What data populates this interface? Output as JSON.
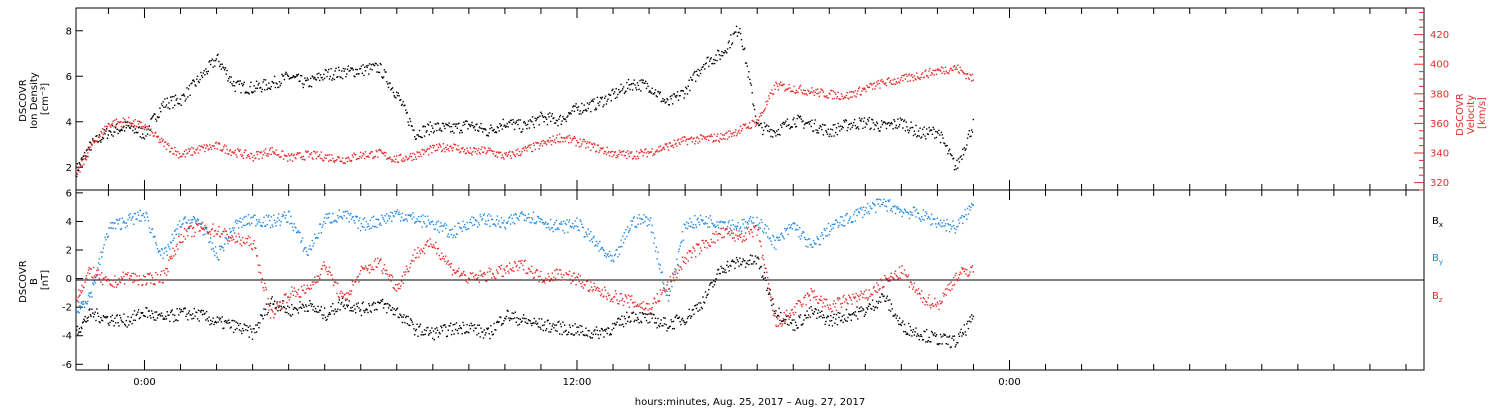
{
  "chart_data": [
    {
      "type": "scatter",
      "panel": "density-velocity",
      "ylabel_left": [
        "DSCOVR",
        "Ion Density",
        "[cm⁻³]"
      ],
      "ylabel_right": [
        "DSCOVR",
        "Velocity",
        "[km/s]"
      ],
      "ylim_left": [
        1,
        9
      ],
      "ylim_right": [
        315,
        438
      ],
      "yticks_left": [
        2,
        4,
        6,
        8
      ],
      "yticks_right": [
        320,
        340,
        360,
        380,
        400,
        420
      ],
      "xlim_hours": [
        -1.9,
        35.5
      ],
      "grid": false,
      "series": [
        {
          "axis": "left",
          "color": "#000000",
          "x": [
            -1.9,
            -1.5,
            -1.0,
            -0.5,
            0.0,
            0.5,
            1.0,
            1.5,
            2.0,
            2.5,
            3.0,
            3.5,
            4.0,
            4.5,
            5.0,
            5.5,
            6.0,
            6.5,
            7.0,
            7.5,
            8.0,
            8.5,
            9.0,
            9.5,
            10.0,
            10.5,
            11.0,
            11.5,
            12.0,
            12.5,
            13.0,
            13.5,
            14.0,
            14.5,
            15.0,
            15.5,
            16.0,
            16.5,
            17.0,
            17.5,
            18.0,
            18.5,
            19.0,
            19.5,
            20.0,
            20.5,
            21.0,
            21.5,
            22.0,
            22.5,
            23.0
          ],
          "y": [
            1.9,
            3.0,
            3.6,
            3.8,
            3.5,
            4.8,
            5.0,
            5.9,
            6.8,
            5.6,
            5.5,
            5.7,
            6.0,
            5.7,
            6.1,
            6.2,
            6.3,
            6.4,
            5.2,
            3.5,
            3.8,
            3.7,
            3.9,
            3.6,
            4.0,
            3.8,
            4.2,
            4.1,
            4.6,
            4.8,
            5.2,
            5.7,
            5.6,
            4.8,
            5.4,
            6.6,
            7.0,
            8.2,
            3.8,
            3.6,
            4.1,
            3.9,
            3.6,
            3.9,
            4.0,
            3.8,
            4.0,
            3.5,
            3.6,
            2.0,
            4.0
          ]
        },
        {
          "axis": "right",
          "color": "#e62a2a",
          "x": [
            -1.9,
            -1.5,
            -1.0,
            -0.5,
            0.0,
            0.5,
            1.0,
            1.5,
            2.0,
            2.5,
            3.0,
            3.5,
            4.0,
            4.5,
            5.0,
            5.5,
            6.0,
            6.5,
            7.0,
            7.5,
            8.0,
            8.5,
            9.0,
            9.5,
            10.0,
            10.5,
            11.0,
            11.5,
            12.0,
            12.5,
            13.0,
            13.5,
            14.0,
            14.5,
            15.0,
            15.5,
            16.0,
            16.5,
            17.0,
            17.5,
            18.0,
            18.5,
            19.0,
            19.5,
            20.0,
            20.5,
            21.0,
            21.5,
            22.0,
            22.5,
            23.0
          ],
          "y": [
            325,
            345,
            360,
            362,
            358,
            347,
            339,
            343,
            345,
            341,
            338,
            342,
            337,
            339,
            338,
            336,
            339,
            340,
            336,
            339,
            343,
            345,
            341,
            342,
            338,
            342,
            346,
            351,
            348,
            344,
            340,
            339,
            341,
            345,
            349,
            350,
            351,
            356,
            362,
            386,
            384,
            382,
            380,
            379,
            384,
            388,
            390,
            393,
            396,
            398,
            390
          ]
        }
      ]
    },
    {
      "type": "scatter",
      "panel": "magnetic-field",
      "ylabel": [
        "DSCOVR",
        "B",
        "[nT]"
      ],
      "ylim": [
        -6.4,
        6.2
      ],
      "yticks": [
        -6,
        -4,
        -2,
        0,
        2,
        4,
        6
      ],
      "zero_line": true,
      "xlim_hours": [
        -1.9,
        35.5
      ],
      "xticks": [
        "0:00",
        "12:00",
        "0:00"
      ],
      "xtick_hours": [
        0,
        12,
        24
      ],
      "xlabel": "hours:minutes, Aug. 25, 2017 – Aug. 27, 2017",
      "grid": false,
      "series": [
        {
          "name": "Bx",
          "color": "#000000",
          "x": [
            -1.9,
            -1.5,
            -1.0,
            -0.5,
            0.0,
            0.5,
            1.0,
            1.5,
            2.0,
            2.5,
            3.0,
            3.5,
            4.0,
            4.5,
            5.0,
            5.5,
            6.0,
            6.5,
            7.0,
            7.5,
            8.0,
            8.5,
            9.0,
            9.5,
            10.0,
            10.5,
            11.0,
            11.5,
            12.0,
            12.5,
            13.0,
            13.5,
            14.0,
            14.5,
            15.0,
            15.5,
            16.0,
            16.5,
            17.0,
            17.5,
            18.0,
            18.5,
            19.0,
            19.5,
            20.0,
            20.5,
            21.0,
            21.5,
            22.0,
            22.5,
            23.0
          ],
          "y": [
            -3.6,
            -2.4,
            -2.8,
            -2.9,
            -2.3,
            -2.8,
            -2.4,
            -2.5,
            -3.0,
            -3.3,
            -3.8,
            -1.5,
            -2.2,
            -1.8,
            -2.5,
            -1.6,
            -2.1,
            -1.7,
            -2.3,
            -3.5,
            -3.8,
            -3.5,
            -3.3,
            -3.9,
            -2.5,
            -2.9,
            -3.2,
            -3.4,
            -3.6,
            -3.8,
            -3.4,
            -2.5,
            -2.8,
            -3.2,
            -2.7,
            -1.5,
            0.8,
            1.2,
            1.3,
            -2.2,
            -3.2,
            -2.3,
            -2.9,
            -2.5,
            -2.2,
            -1.2,
            -3.3,
            -3.8,
            -4.2,
            -4.4,
            -2.7
          ]
        },
        {
          "name": "By",
          "color": "#1e88e5",
          "x": [
            -1.9,
            -1.5,
            -1.0,
            -0.5,
            0.0,
            0.5,
            1.0,
            1.5,
            2.0,
            2.5,
            3.0,
            3.5,
            4.0,
            4.5,
            5.0,
            5.5,
            6.0,
            6.5,
            7.0,
            7.5,
            8.0,
            8.5,
            9.0,
            9.5,
            10.0,
            10.5,
            11.0,
            11.5,
            12.0,
            12.5,
            13.0,
            13.5,
            14.0,
            14.5,
            15.0,
            15.5,
            16.0,
            16.5,
            17.0,
            17.5,
            18.0,
            18.5,
            19.0,
            19.5,
            20.0,
            20.5,
            21.0,
            21.5,
            22.0,
            22.5,
            23.0
          ],
          "y": [
            -2.2,
            -1.0,
            3.6,
            4.1,
            4.5,
            1.5,
            3.9,
            4.1,
            1.6,
            3.8,
            4.2,
            4.0,
            4.4,
            1.8,
            4.2,
            4.5,
            3.8,
            4.1,
            4.6,
            4.2,
            3.9,
            3.2,
            4.0,
            4.2,
            3.8,
            4.6,
            4.1,
            3.6,
            3.9,
            2.5,
            1.2,
            4.0,
            4.2,
            -1.5,
            3.9,
            4.1,
            4.0,
            3.7,
            4.1,
            2.5,
            3.8,
            2.2,
            3.6,
            4.2,
            4.9,
            5.3,
            4.8,
            4.5,
            4.0,
            3.6,
            5.3
          ]
        },
        {
          "name": "Bz",
          "color": "#e62a2a",
          "x": [
            -1.9,
            -1.5,
            -1.0,
            -0.5,
            0.0,
            0.5,
            1.0,
            1.5,
            2.0,
            2.5,
            3.0,
            3.5,
            4.0,
            4.5,
            5.0,
            5.5,
            6.0,
            6.5,
            7.0,
            7.5,
            8.0,
            8.5,
            9.0,
            9.5,
            10.0,
            10.5,
            11.0,
            11.5,
            12.0,
            12.5,
            13.0,
            13.5,
            14.0,
            14.5,
            15.0,
            15.5,
            16.0,
            16.5,
            17.0,
            17.5,
            18.0,
            18.5,
            19.0,
            19.5,
            20.0,
            20.5,
            21.0,
            21.5,
            22.0,
            22.5,
            23.0
          ],
          "y": [
            -1.2,
            0.6,
            -0.4,
            0.2,
            -0.1,
            0.2,
            3.0,
            3.6,
            3.4,
            2.8,
            2.5,
            -2.5,
            -1.0,
            -0.8,
            1.0,
            -1.5,
            0.5,
            1.2,
            -0.6,
            1.8,
            2.5,
            0.8,
            0.0,
            0.3,
            0.6,
            1.0,
            0.1,
            0.4,
            0.0,
            -0.8,
            -1.2,
            -1.6,
            -2.0,
            -0.5,
            1.5,
            2.4,
            3.2,
            3.0,
            3.4,
            -3.2,
            -2.2,
            -1.0,
            -2.0,
            -1.4,
            -1.2,
            -0.2,
            0.5,
            -1.2,
            -1.8,
            0.2,
            0.8
          ]
        }
      ],
      "legend_placement": "right",
      "legend": [
        {
          "main": "B",
          "sub": "x",
          "color": "#000000"
        },
        {
          "main": "B",
          "sub": "y",
          "color": "#1e88e5"
        },
        {
          "main": "B",
          "sub": "z",
          "color": "#e62a2a"
        }
      ]
    }
  ]
}
